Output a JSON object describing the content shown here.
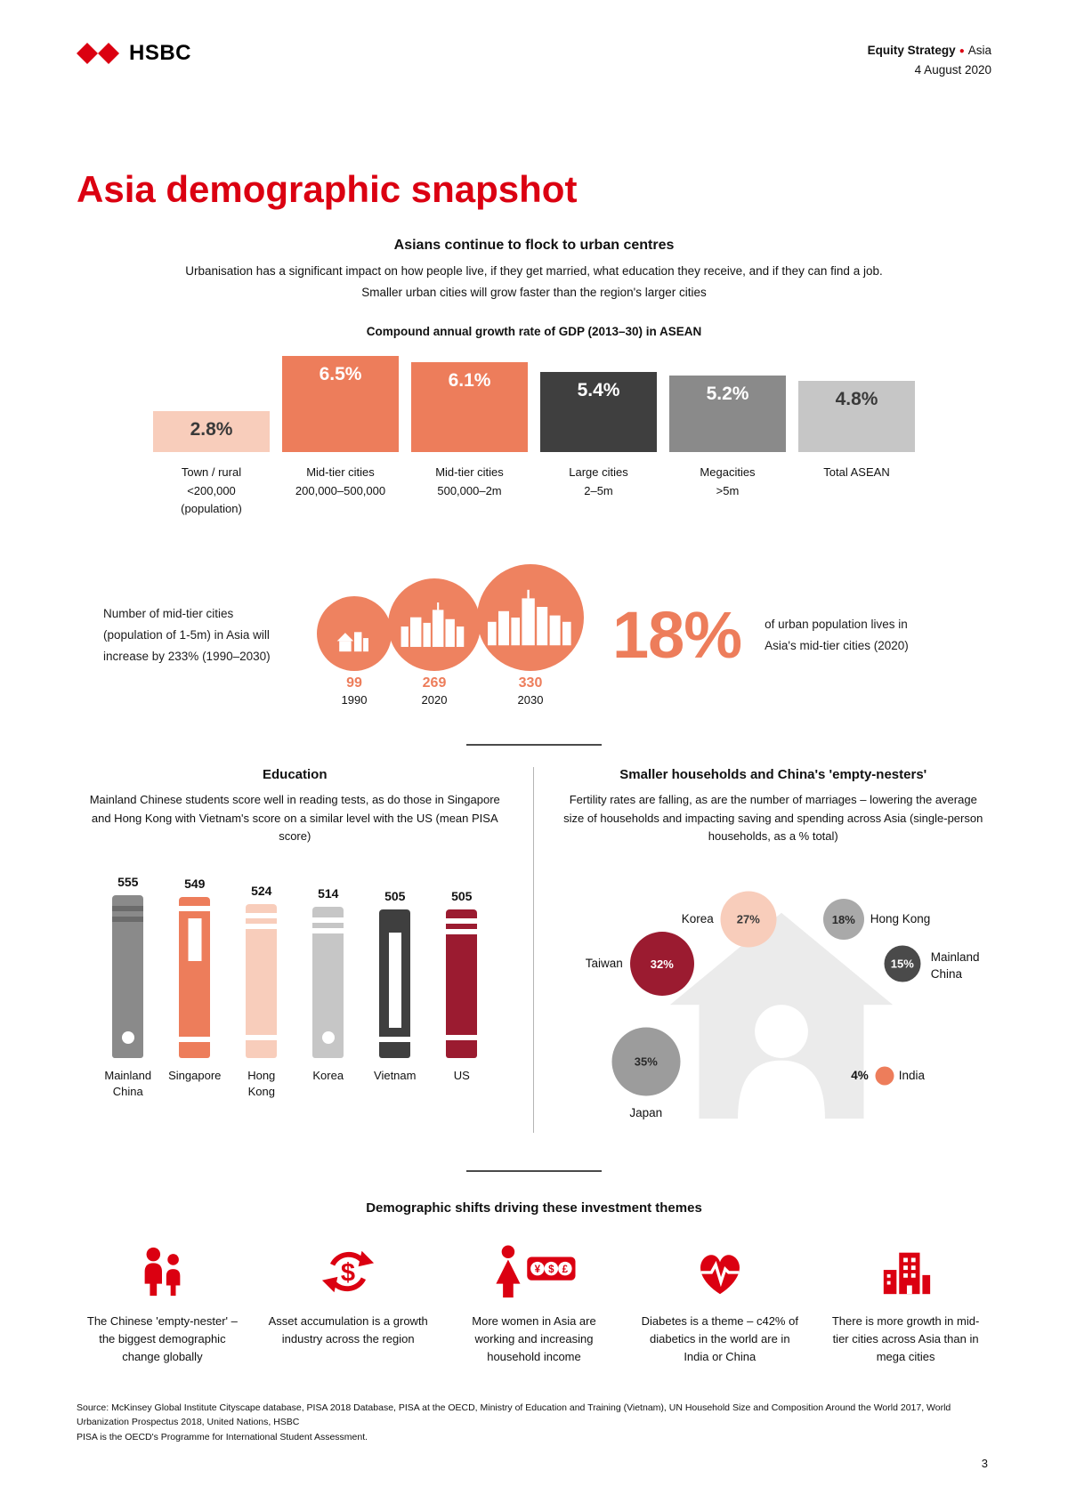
{
  "header": {
    "brand": "HSBC",
    "doc_type": "Equity Strategy",
    "bullet": "●",
    "region": "Asia",
    "date": "4 August 2020"
  },
  "page": {
    "title": "Asia demographic snapshot",
    "number": "3"
  },
  "colors": {
    "hsbc_red": "#db0011",
    "salmon": "#ed7d5b",
    "light_peach": "#f8cdbb",
    "dark_gray": "#3f3f3f",
    "mid_gray": "#8a8a8a",
    "light_gray": "#c6c6c6",
    "maroon": "#9b1b30"
  },
  "urban_section": {
    "heading": "Asians continue to flock to urban centres",
    "line1": "Urbanisation has a significant impact on how people live, if they get married, what education they receive, and if they can find a job.",
    "line2": "Smaller urban cities will grow faster than the region's larger cities",
    "chart_title": "Compound annual growth rate of GDP (2013–30) in ASEAN"
  },
  "midtier_section": {
    "left_text": "Number of mid-tier cities (population of 1-5m) in Asia will increase by 233% (1990–2030)",
    "big_stat": "18%",
    "right_text": "of urban population lives in Asia's mid-tier cities (2020)",
    "circles": [
      {
        "count": "99",
        "year": "1990"
      },
      {
        "count": "269",
        "year": "2020"
      },
      {
        "count": "330",
        "year": "2030"
      }
    ]
  },
  "education_section": {
    "heading": "Education",
    "subtext": "Mainland Chinese students score well in reading tests, as do those in Singapore and Hong Kong with Vietnam's score on a similar level with the US (mean PISA score)"
  },
  "households_section": {
    "heading": "Smaller households and China's 'empty-nesters'",
    "subtext": "Fertility rates are falling, as are the number of marriages – lowering the average size of households and impacting saving and spending across Asia (single-person households, as a % total)"
  },
  "themes_section": {
    "heading": "Demographic shifts driving these investment themes",
    "items": [
      {
        "icon": "empty-nester-people-icon",
        "caption": "The Chinese 'empty-nester' – the biggest demographic change globally"
      },
      {
        "icon": "dollar-cycle-icon",
        "caption": "Asset accumulation is a growth industry across the region"
      },
      {
        "icon": "working-woman-currency-icon",
        "caption": "More women in Asia are working and increasing household income"
      },
      {
        "icon": "heart-pulse-icon",
        "caption": "Diabetes is a theme – c42% of diabetics in the world are in India or China"
      },
      {
        "icon": "city-buildings-icon",
        "caption": "There is more growth in mid-tier cities across Asia than in mega cities"
      }
    ]
  },
  "footer": {
    "source_line1": "Source: McKinsey Global Institute Cityscape database, PISA 2018 Database, PISA at the OECD, Ministry of Education and Training (Vietnam), UN Household Size and Composition Around the World 2017, World Urbanization Prospectus 2018, United Nations, HSBC",
    "source_line2": "PISA is the OECD's Programme for International Student Assessment."
  },
  "chart_data": [
    {
      "type": "bar",
      "title": "Compound annual growth rate of GDP (2013–30) in ASEAN",
      "ylim": [
        0,
        7
      ],
      "bars": [
        {
          "value": 2.8,
          "label_value": "2.8%",
          "category_lines": [
            "Town / rural",
            "<200,000",
            "(population)"
          ],
          "color": "#f8cdbb",
          "text_color": "#3a3a3a"
        },
        {
          "value": 6.5,
          "label_value": "6.5%",
          "category_lines": [
            "Mid-tier cities",
            "200,000–500,000"
          ],
          "color": "#ed7d5b",
          "text_color": "#ffffff"
        },
        {
          "value": 6.1,
          "label_value": "6.1%",
          "category_lines": [
            "Mid-tier cities",
            "500,000–2m"
          ],
          "color": "#ed7d5b",
          "text_color": "#ffffff"
        },
        {
          "value": 5.4,
          "label_value": "5.4%",
          "category_lines": [
            "Large cities",
            "2–5m"
          ],
          "color": "#3f3f3f",
          "text_color": "#ffffff"
        },
        {
          "value": 5.2,
          "label_value": "5.2%",
          "category_lines": [
            "Megacities",
            ">5m"
          ],
          "color": "#8a8a8a",
          "text_color": "#ffffff"
        },
        {
          "value": 4.8,
          "label_value": "4.8%",
          "category_lines": [
            "Total ASEAN"
          ],
          "color": "#c6c6c6",
          "text_color": "#3a3a3a"
        }
      ]
    },
    {
      "type": "bar",
      "title": "Education (mean PISA score)",
      "books": [
        {
          "label": "Mainland China",
          "score": 555,
          "color": "#8a8a8a",
          "variant": "dark-stripes-circle"
        },
        {
          "label": "Singapore",
          "score": 549,
          "color": "#ed7d5b",
          "variant": "bands-label"
        },
        {
          "label": "Hong Kong",
          "score": 524,
          "color": "#f8cdbb",
          "variant": "bands"
        },
        {
          "label": "Korea",
          "score": 514,
          "color": "#c6c6c6",
          "variant": "stripes-circle"
        },
        {
          "label": "Vietnam",
          "score": 505,
          "color": "#3f3f3f",
          "variant": "label"
        },
        {
          "label": "US",
          "score": 505,
          "color": "#9b1b30",
          "variant": "bands"
        }
      ]
    },
    {
      "type": "bubble",
      "title": "Single-person households, as a % total",
      "bubbles": [
        {
          "label": "Korea",
          "value": 27,
          "display": "27%",
          "color": "#f8cdbb",
          "text_color": "#3a3a3a",
          "label_side": "left"
        },
        {
          "label": "Hong Kong",
          "value": 18,
          "display": "18%",
          "color": "#a9a9a9",
          "text_color": "#2a2a2a",
          "label_side": "right"
        },
        {
          "label": "Taiwan",
          "value": 32,
          "display": "32%",
          "color": "#9b1b30",
          "text_color": "#ffffff",
          "label_side": "left"
        },
        {
          "label": "Mainland China",
          "value": 15,
          "display": "15%",
          "color": "#4a4a4a",
          "text_color": "#ffffff",
          "label_side": "right"
        },
        {
          "label": "Japan",
          "value": 35,
          "display": "35%",
          "color": "#9c9c9c",
          "text_color": "#2a2a2a",
          "label_side": "below"
        },
        {
          "label": "India",
          "value": 4,
          "display": "4%",
          "color": "#ed7d5b",
          "text_color": "#2a2a2a",
          "label_side": "right-outside"
        }
      ]
    }
  ]
}
